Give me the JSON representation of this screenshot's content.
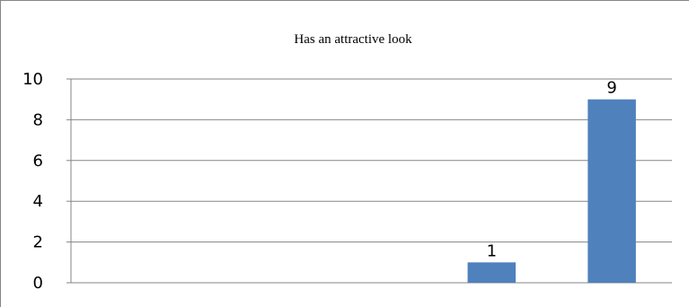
{
  "chart_data": {
    "type": "bar",
    "title": "Has an attractive look",
    "categories": [
      "",
      "",
      "",
      "",
      ""
    ],
    "values": [
      0,
      0,
      0,
      1,
      9
    ],
    "data_labels": [
      "",
      "",
      "",
      "1",
      "9"
    ],
    "ylim": [
      0,
      10
    ],
    "yticks": [
      0,
      2,
      4,
      6,
      8,
      10
    ],
    "grid": true,
    "bar_color": "#4F81BD",
    "xlabel": "",
    "ylabel": ""
  }
}
